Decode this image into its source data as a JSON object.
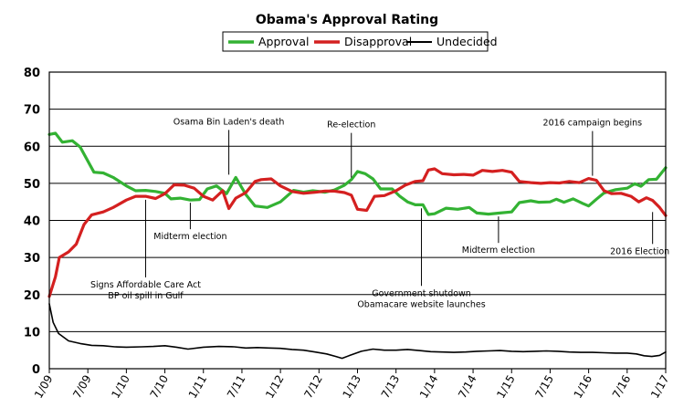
{
  "chart_data": {
    "type": "line",
    "title": "Obama's Approval Rating",
    "xlabel": "",
    "ylabel": "",
    "ylim": [
      0,
      80
    ],
    "yticks": [
      0,
      10,
      20,
      30,
      40,
      50,
      60,
      70,
      80
    ],
    "xlim": [
      2009.0,
      2017.0
    ],
    "grid": true,
    "legend_position": "top",
    "xticks": [
      {
        "x": 2009.0,
        "label": "1/09"
      },
      {
        "x": 2009.5,
        "label": "7/09"
      },
      {
        "x": 2010.0,
        "label": "1/10"
      },
      {
        "x": 2010.5,
        "label": "7/10"
      },
      {
        "x": 2011.0,
        "label": "1/11"
      },
      {
        "x": 2011.5,
        "label": "7/11"
      },
      {
        "x": 2012.0,
        "label": "1/12"
      },
      {
        "x": 2012.5,
        "label": "7/12"
      },
      {
        "x": 2013.0,
        "label": "1/13"
      },
      {
        "x": 2013.5,
        "label": "7/13"
      },
      {
        "x": 2014.0,
        "label": "1/14"
      },
      {
        "x": 2014.5,
        "label": "7/14"
      },
      {
        "x": 2015.0,
        "label": "1/15"
      },
      {
        "x": 2015.5,
        "label": "7/15"
      },
      {
        "x": 2016.0,
        "label": "1/16"
      },
      {
        "x": 2016.5,
        "label": "7/16"
      },
      {
        "x": 2017.0,
        "label": "1/17"
      }
    ],
    "series": [
      {
        "name": "Approval",
        "color": "#33b233",
        "points": [
          [
            2009.0,
            63.2
          ],
          [
            2009.08,
            63.5
          ],
          [
            2009.17,
            61.1
          ],
          [
            2009.3,
            61.5
          ],
          [
            2009.4,
            59.8
          ],
          [
            2009.58,
            53.0
          ],
          [
            2009.7,
            52.8
          ],
          [
            2009.83,
            51.6
          ],
          [
            2010.0,
            49.3
          ],
          [
            2010.12,
            48.0
          ],
          [
            2010.25,
            48.1
          ],
          [
            2010.38,
            47.8
          ],
          [
            2010.5,
            47.3
          ],
          [
            2010.58,
            45.8
          ],
          [
            2010.7,
            46.0
          ],
          [
            2010.83,
            45.5
          ],
          [
            2010.95,
            45.6
          ],
          [
            2011.05,
            48.5
          ],
          [
            2011.17,
            49.3
          ],
          [
            2011.3,
            47.2
          ],
          [
            2011.42,
            51.6
          ],
          [
            2011.55,
            47.0
          ],
          [
            2011.67,
            43.9
          ],
          [
            2011.83,
            43.5
          ],
          [
            2012.0,
            45.0
          ],
          [
            2012.17,
            48.1
          ],
          [
            2012.3,
            47.6
          ],
          [
            2012.42,
            48.0
          ],
          [
            2012.58,
            47.6
          ],
          [
            2012.7,
            48.2
          ],
          [
            2012.83,
            49.5
          ],
          [
            2012.92,
            51.0
          ],
          [
            2013.0,
            53.2
          ],
          [
            2013.1,
            52.6
          ],
          [
            2013.2,
            51.2
          ],
          [
            2013.3,
            48.5
          ],
          [
            2013.45,
            48.5
          ],
          [
            2013.55,
            46.5
          ],
          [
            2013.65,
            45.0
          ],
          [
            2013.75,
            44.2
          ],
          [
            2013.85,
            44.2
          ],
          [
            2013.92,
            41.6
          ],
          [
            2014.0,
            41.8
          ],
          [
            2014.15,
            43.3
          ],
          [
            2014.3,
            43.0
          ],
          [
            2014.45,
            43.5
          ],
          [
            2014.55,
            42.0
          ],
          [
            2014.7,
            41.7
          ],
          [
            2014.85,
            42.0
          ],
          [
            2015.0,
            42.3
          ],
          [
            2015.1,
            44.8
          ],
          [
            2015.25,
            45.3
          ],
          [
            2015.35,
            44.9
          ],
          [
            2015.5,
            45.0
          ],
          [
            2015.58,
            45.7
          ],
          [
            2015.68,
            44.9
          ],
          [
            2015.8,
            45.8
          ],
          [
            2015.92,
            44.6
          ],
          [
            2016.0,
            43.9
          ],
          [
            2016.1,
            45.7
          ],
          [
            2016.2,
            47.4
          ],
          [
            2016.35,
            48.3
          ],
          [
            2016.5,
            48.7
          ],
          [
            2016.6,
            49.9
          ],
          [
            2016.68,
            49.2
          ],
          [
            2016.78,
            51.0
          ],
          [
            2016.88,
            51.1
          ],
          [
            2017.0,
            54.2
          ]
        ]
      },
      {
        "name": "Disapproval",
        "color": "#d42020",
        "points": [
          [
            2009.0,
            19.5
          ],
          [
            2009.08,
            24.8
          ],
          [
            2009.13,
            30.0
          ],
          [
            2009.25,
            31.5
          ],
          [
            2009.35,
            33.6
          ],
          [
            2009.45,
            38.9
          ],
          [
            2009.55,
            41.5
          ],
          [
            2009.7,
            42.3
          ],
          [
            2009.83,
            43.5
          ],
          [
            2010.0,
            45.5
          ],
          [
            2010.12,
            46.5
          ],
          [
            2010.25,
            46.5
          ],
          [
            2010.38,
            45.9
          ],
          [
            2010.5,
            47.2
          ],
          [
            2010.62,
            49.6
          ],
          [
            2010.75,
            49.5
          ],
          [
            2010.88,
            48.7
          ],
          [
            2011.0,
            46.5
          ],
          [
            2011.12,
            45.5
          ],
          [
            2011.25,
            48.0
          ],
          [
            2011.33,
            43.2
          ],
          [
            2011.42,
            46.0
          ],
          [
            2011.55,
            47.5
          ],
          [
            2011.67,
            50.5
          ],
          [
            2011.75,
            51.0
          ],
          [
            2011.88,
            51.2
          ],
          [
            2012.0,
            49.3
          ],
          [
            2012.15,
            47.8
          ],
          [
            2012.3,
            47.3
          ],
          [
            2012.45,
            47.6
          ],
          [
            2012.58,
            47.9
          ],
          [
            2012.7,
            47.9
          ],
          [
            2012.83,
            47.5
          ],
          [
            2012.92,
            46.8
          ],
          [
            2013.0,
            43.0
          ],
          [
            2013.12,
            42.7
          ],
          [
            2013.22,
            46.5
          ],
          [
            2013.35,
            46.7
          ],
          [
            2013.5,
            48.0
          ],
          [
            2013.62,
            49.5
          ],
          [
            2013.75,
            50.5
          ],
          [
            2013.85,
            50.7
          ],
          [
            2013.92,
            53.6
          ],
          [
            2014.0,
            53.9
          ],
          [
            2014.1,
            52.6
          ],
          [
            2014.25,
            52.3
          ],
          [
            2014.38,
            52.4
          ],
          [
            2014.5,
            52.2
          ],
          [
            2014.62,
            53.5
          ],
          [
            2014.75,
            53.2
          ],
          [
            2014.88,
            53.5
          ],
          [
            2015.0,
            53.0
          ],
          [
            2015.1,
            50.5
          ],
          [
            2015.25,
            50.2
          ],
          [
            2015.38,
            50.0
          ],
          [
            2015.5,
            50.2
          ],
          [
            2015.62,
            50.1
          ],
          [
            2015.75,
            50.5
          ],
          [
            2015.88,
            50.2
          ],
          [
            2016.0,
            51.3
          ],
          [
            2016.1,
            50.8
          ],
          [
            2016.2,
            48.0
          ],
          [
            2016.3,
            47.2
          ],
          [
            2016.42,
            47.3
          ],
          [
            2016.55,
            46.5
          ],
          [
            2016.65,
            45.0
          ],
          [
            2016.75,
            46.1
          ],
          [
            2016.83,
            45.4
          ],
          [
            2016.92,
            43.5
          ],
          [
            2017.0,
            41.3
          ]
        ]
      },
      {
        "name": "Undecided",
        "color": "#000000",
        "points": [
          [
            2009.0,
            17.5
          ],
          [
            2009.05,
            12.5
          ],
          [
            2009.12,
            9.5
          ],
          [
            2009.25,
            7.5
          ],
          [
            2009.4,
            6.8
          ],
          [
            2009.55,
            6.3
          ],
          [
            2009.7,
            6.2
          ],
          [
            2009.85,
            5.9
          ],
          [
            2010.0,
            5.8
          ],
          [
            2010.2,
            5.9
          ],
          [
            2010.35,
            6.0
          ],
          [
            2010.5,
            6.2
          ],
          [
            2010.65,
            5.8
          ],
          [
            2010.8,
            5.3
          ],
          [
            2011.0,
            5.8
          ],
          [
            2011.2,
            6.0
          ],
          [
            2011.4,
            5.9
          ],
          [
            2011.55,
            5.6
          ],
          [
            2011.7,
            5.7
          ],
          [
            2011.85,
            5.6
          ],
          [
            2012.0,
            5.5
          ],
          [
            2012.15,
            5.2
          ],
          [
            2012.3,
            5.0
          ],
          [
            2012.45,
            4.5
          ],
          [
            2012.6,
            4.0
          ],
          [
            2012.72,
            3.3
          ],
          [
            2012.8,
            2.8
          ],
          [
            2012.9,
            3.6
          ],
          [
            2013.05,
            4.7
          ],
          [
            2013.2,
            5.3
          ],
          [
            2013.35,
            5.0
          ],
          [
            2013.5,
            5.0
          ],
          [
            2013.65,
            5.2
          ],
          [
            2013.8,
            4.9
          ],
          [
            2013.95,
            4.6
          ],
          [
            2014.1,
            4.5
          ],
          [
            2014.25,
            4.4
          ],
          [
            2014.4,
            4.5
          ],
          [
            2014.55,
            4.7
          ],
          [
            2014.7,
            4.8
          ],
          [
            2014.85,
            4.9
          ],
          [
            2015.0,
            4.7
          ],
          [
            2015.15,
            4.6
          ],
          [
            2015.3,
            4.7
          ],
          [
            2015.45,
            4.8
          ],
          [
            2015.6,
            4.7
          ],
          [
            2015.75,
            4.5
          ],
          [
            2015.9,
            4.4
          ],
          [
            2016.05,
            4.4
          ],
          [
            2016.2,
            4.3
          ],
          [
            2016.35,
            4.2
          ],
          [
            2016.5,
            4.2
          ],
          [
            2016.62,
            4.0
          ],
          [
            2016.72,
            3.5
          ],
          [
            2016.82,
            3.3
          ],
          [
            2016.92,
            3.6
          ],
          [
            2017.0,
            4.5
          ]
        ]
      }
    ],
    "annotations": [
      {
        "text": "Osama Bin Laden's death",
        "x": 2011.33,
        "y": 51.6,
        "pos": "above"
      },
      {
        "text": "Re-election",
        "x": 2012.92,
        "y": 50.8,
        "pos": "above"
      },
      {
        "text": "2016 campaign begins",
        "x": 2016.05,
        "y": 51.3,
        "pos": "above"
      },
      {
        "text": "Midterm election",
        "x": 2010.83,
        "y": 45.5,
        "pos": "below"
      },
      {
        "text": "Midterm election",
        "x": 2014.83,
        "y": 41.8,
        "pos": "below"
      },
      {
        "text": "2016 Election",
        "x": 2016.83,
        "y": 43.0,
        "pos": "below"
      },
      {
        "text": "Signs Affordable Care Act",
        "text2": "BP oil spill in Gulf",
        "x": 2010.25,
        "y": 46.3,
        "pos": "below"
      },
      {
        "text": "Government shutdown",
        "text2": "Obamacare website launches",
        "x": 2013.83,
        "y": 44.0,
        "pos": "below"
      }
    ]
  }
}
